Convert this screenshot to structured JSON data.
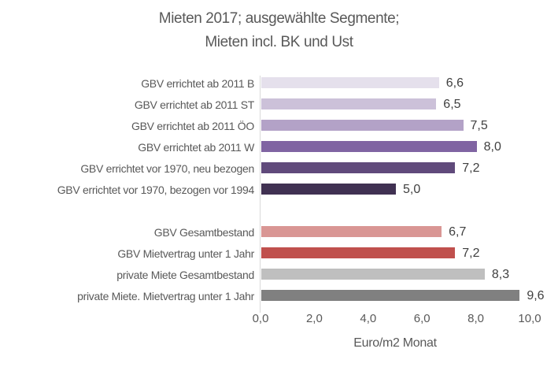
{
  "title": {
    "line1": "Mieten 2017; ausgewählte Segmente;",
    "line2": "Mieten incl. BK und Ust"
  },
  "chart_data": {
    "type": "bar",
    "orientation": "horizontal",
    "title": "Mieten 2017; ausgewählte Segmente; Mieten incl. BK und Ust",
    "xlabel": "Euro/m2 Monat",
    "xlim": [
      0,
      10
    ],
    "grid": false,
    "legend": false,
    "value_decimal_style": "comma",
    "gap_after_index": 5,
    "xticks": [
      {
        "value": 0,
        "label": "0,0"
      },
      {
        "value": 2,
        "label": "2,0"
      },
      {
        "value": 4,
        "label": "4,0"
      },
      {
        "value": 6,
        "label": "6,0"
      },
      {
        "value": 8,
        "label": "8,0"
      },
      {
        "value": 10,
        "label": "10,0"
      }
    ],
    "items": [
      {
        "category": "GBV errichtet ab 2011 B",
        "value": 6.6,
        "display": "6,6",
        "color": "#E5E0EC"
      },
      {
        "category": "GBV errichtet ab 2011 ST",
        "value": 6.5,
        "display": "6,5",
        "color": "#CCC1D9"
      },
      {
        "category": "GBV errichtet ab 2011 ÖO",
        "value": 7.5,
        "display": "7,5",
        "color": "#B3A2C7"
      },
      {
        "category": "GBV errichtet ab 2011 W",
        "value": 8.0,
        "display": "8,0",
        "color": "#8064A2"
      },
      {
        "category": "GBV errichtet vor 1970, neu bezogen",
        "value": 7.2,
        "display": "7,2",
        "color": "#604A7B"
      },
      {
        "category": "GBV errichtet vor 1970, bezogen vor 1994",
        "value": 5.0,
        "display": "5,0",
        "color": "#403152"
      },
      {
        "category": "GBV Gesamtbestand",
        "value": 6.7,
        "display": "6,7",
        "color": "#D99694"
      },
      {
        "category": "GBV Mietvertrag unter 1 Jahr",
        "value": 7.2,
        "display": "7,2",
        "color": "#C0504D"
      },
      {
        "category": "private Miete Gesamtbestand",
        "value": 8.3,
        "display": "8,3",
        "color": "#BFBFBF"
      },
      {
        "category": "private Miete. Mietvertrag unter 1 Jahr",
        "value": 9.6,
        "display": "9,6",
        "color": "#808080"
      }
    ],
    "colors": {
      "axis_line": "#D9D9D9",
      "label_text": "#595959",
      "value_text": "#404040",
      "title_text": "#595959"
    }
  }
}
